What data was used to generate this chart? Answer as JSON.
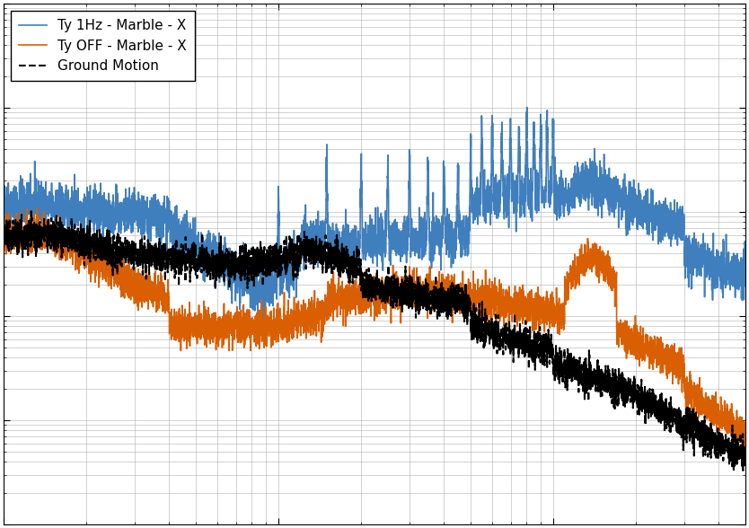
{
  "legend": [
    {
      "label": "Ty 1Hz - Marble - X",
      "color": "#3f7fbd",
      "linestyle": "-",
      "linewidth": 1.2
    },
    {
      "label": "Ty OFF - Marble - X",
      "color": "#d95f02",
      "linestyle": "-",
      "linewidth": 1.2
    },
    {
      "label": "Ground Motion",
      "color": "#000000",
      "linestyle": "--",
      "linewidth": 1.5
    }
  ],
  "xlim": [
    1,
    500
  ],
  "ylim": [
    1e-10,
    1e-05
  ],
  "background_color": "#ffffff",
  "grid_color": "#b0b0b0",
  "figsize": [
    8.34,
    5.88
  ],
  "dpi": 100,
  "seed": 42,
  "n_points": 5000
}
